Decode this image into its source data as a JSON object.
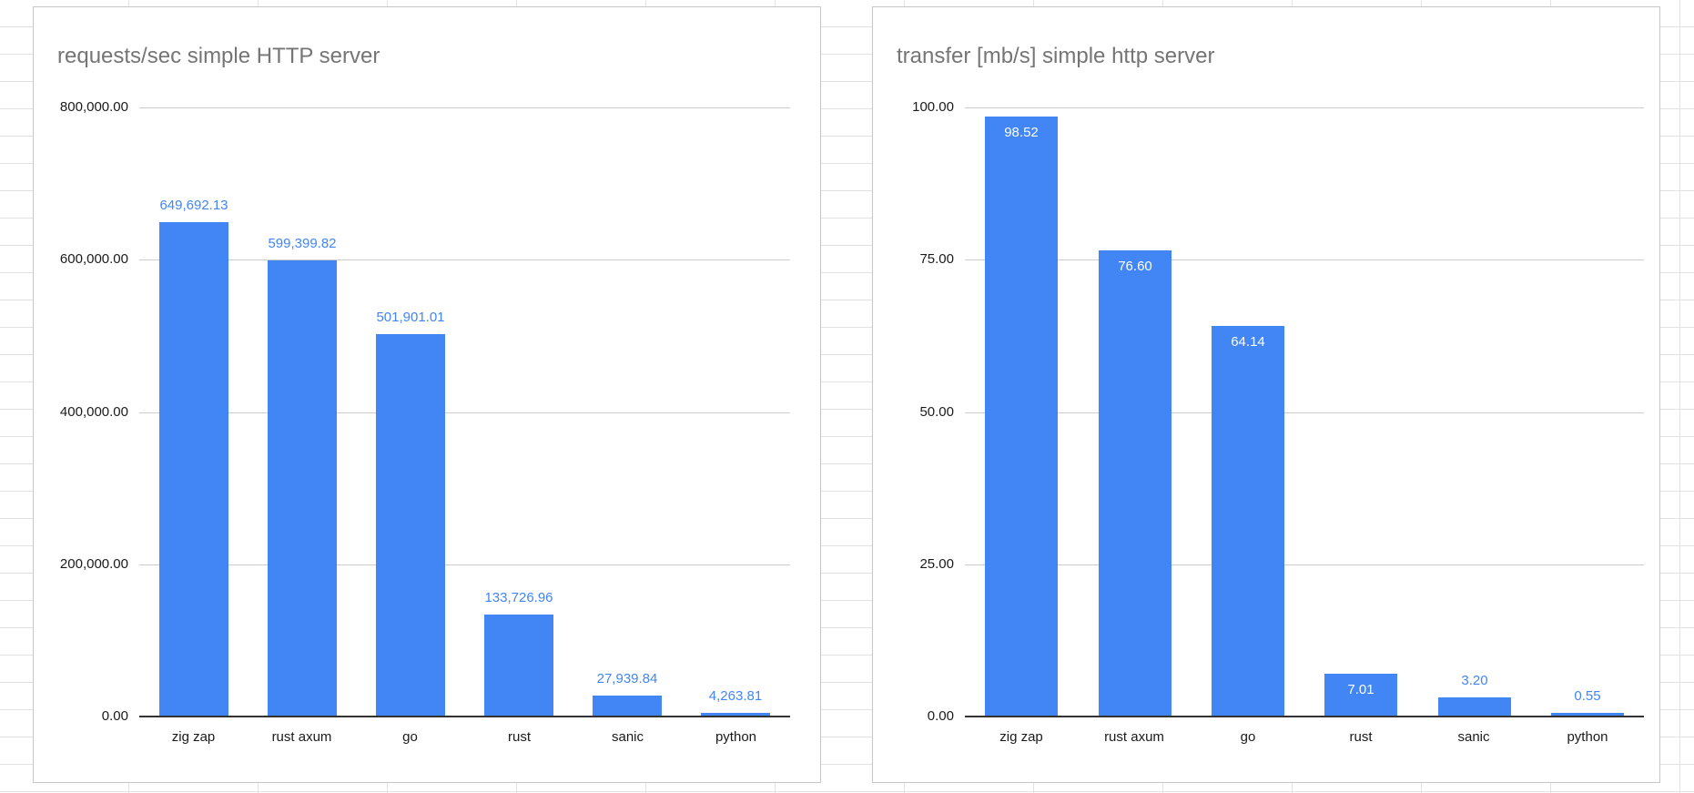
{
  "app": {
    "background_grid_color": "#e2e2e2",
    "card_border_color": "#c6c6c6",
    "title_color": "#757575",
    "axis_color": "#333333",
    "gridline_color": "#cccccc"
  },
  "chart_data": [
    {
      "type": "bar",
      "title": "requests/sec simple HTTP server",
      "categories": [
        "zig zap",
        "rust axum",
        "go",
        "rust",
        "sanic",
        "python"
      ],
      "values": [
        649692.13,
        599399.82,
        501901.01,
        133726.96,
        27939.84,
        4263.81
      ],
      "value_labels": [
        "649,692.13",
        "599,399.82",
        "501,901.01",
        "133,726.96",
        "27,939.84",
        "4,263.81"
      ],
      "value_label_inside": [
        false,
        false,
        false,
        false,
        false,
        false
      ],
      "xlabel": "",
      "ylabel": "",
      "ylim": [
        0,
        800000
      ],
      "yticks": [
        {
          "value": 0,
          "label": "0.00"
        },
        {
          "value": 200000,
          "label": "200,000.00"
        },
        {
          "value": 400000,
          "label": "400,000.00"
        },
        {
          "value": 600000,
          "label": "600,000.00"
        },
        {
          "value": 800000,
          "label": "800,000.00"
        }
      ],
      "bar_color": "#4285f4",
      "value_label_color": "#4285f4",
      "grid": true,
      "legend": "none"
    },
    {
      "type": "bar",
      "title": "transfer [mb/s] simple http server",
      "categories": [
        "zig zap",
        "rust axum",
        "go",
        "rust",
        "sanic",
        "python"
      ],
      "values": [
        98.52,
        76.6,
        64.14,
        7.01,
        3.2,
        0.55
      ],
      "value_labels": [
        "98.52",
        "76.60",
        "64.14",
        "7.01",
        "3.20",
        "0.55"
      ],
      "value_label_inside": [
        true,
        true,
        true,
        true,
        false,
        false
      ],
      "xlabel": "",
      "ylabel": "",
      "ylim": [
        0,
        100
      ],
      "yticks": [
        {
          "value": 0,
          "label": "0.00"
        },
        {
          "value": 25,
          "label": "25.00"
        },
        {
          "value": 50,
          "label": "50.00"
        },
        {
          "value": 75,
          "label": "75.00"
        },
        {
          "value": 100,
          "label": "100.00"
        }
      ],
      "bar_color": "#4285f4",
      "value_label_color": "#4285f4",
      "grid": true,
      "legend": "none"
    }
  ]
}
